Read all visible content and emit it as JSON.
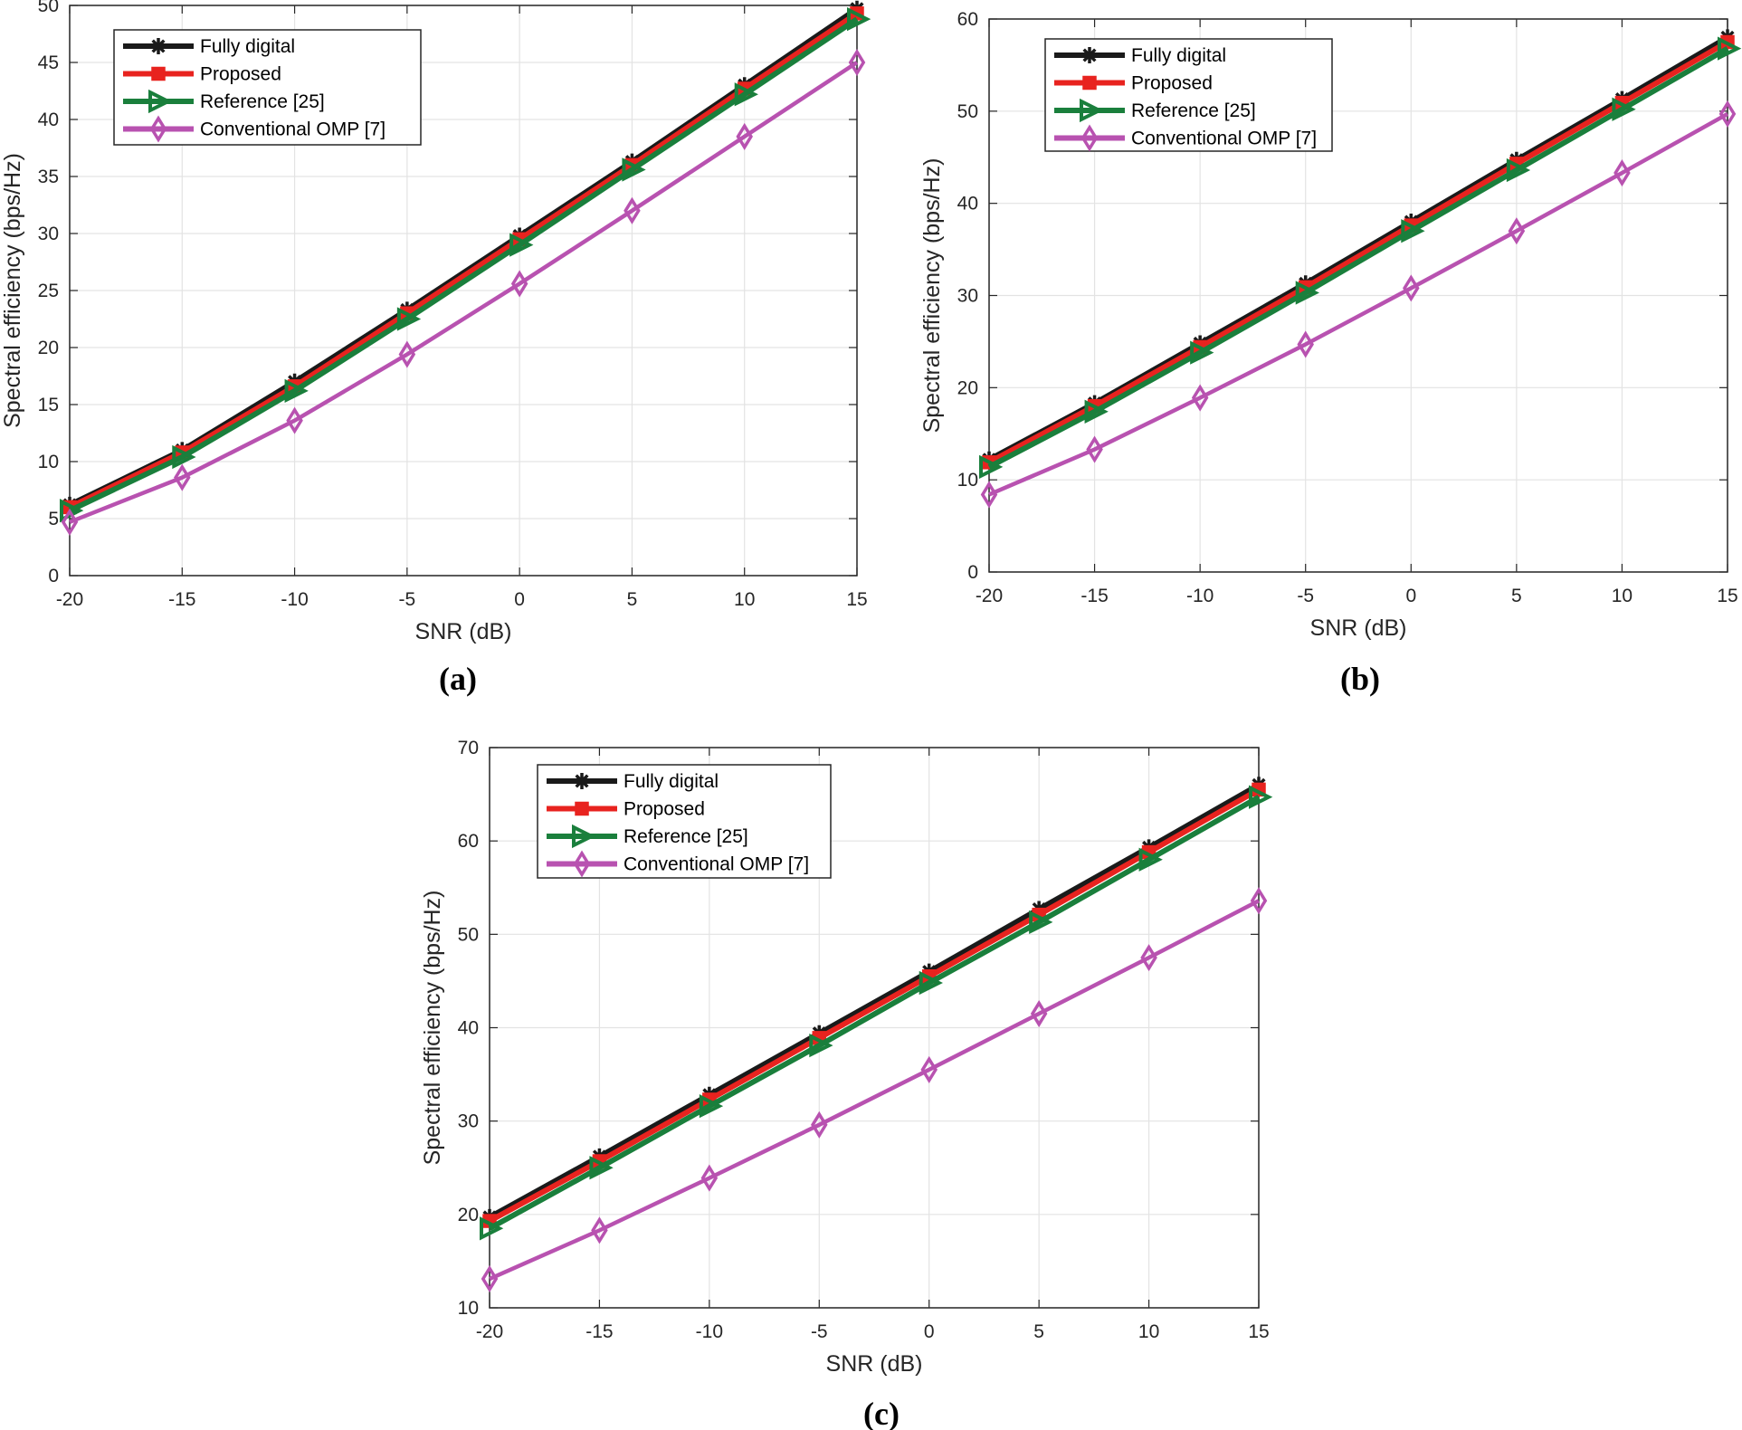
{
  "chart_data": [
    {
      "type": "line",
      "caption": "(a)",
      "xlabel": "SNR (dB)",
      "ylabel": "Spectral efficiency (bps/Hz)",
      "x": [
        -20,
        -15,
        -10,
        -5,
        0,
        5,
        10,
        15
      ],
      "xlim": [
        -20,
        15
      ],
      "ylim": [
        0,
        50
      ],
      "xticks": [
        "-20",
        "-15",
        "-10",
        "-5",
        "0",
        "5",
        "10",
        "15"
      ],
      "yticks": [
        "0",
        "5",
        "10",
        "15",
        "20",
        "25",
        "30",
        "35",
        "40",
        "45",
        "50"
      ],
      "grid": true,
      "legend_position": "top-left",
      "series": [
        {
          "name": "Fully digital",
          "color": "#1a1a1a",
          "marker": "asterisk",
          "values": [
            6.2,
            11.0,
            17.0,
            23.3,
            29.8,
            36.3,
            43.0,
            49.7
          ]
        },
        {
          "name": "Proposed",
          "color": "#e8231f",
          "marker": "square",
          "values": [
            6.0,
            10.8,
            16.6,
            23.0,
            29.5,
            36.0,
            42.7,
            49.3
          ]
        },
        {
          "name": "Reference [25]",
          "color": "#1a7f3c",
          "marker": "triangle-right",
          "values": [
            5.7,
            10.4,
            16.2,
            22.5,
            29.0,
            35.6,
            42.2,
            48.8
          ]
        },
        {
          "name": "Conventional OMP [7]",
          "color": "#b852b0",
          "marker": "diamond",
          "values": [
            4.7,
            8.6,
            13.6,
            19.4,
            25.6,
            32.0,
            38.5,
            45.0
          ]
        }
      ]
    },
    {
      "type": "line",
      "caption": "(b)",
      "xlabel": "SNR (dB)",
      "ylabel": "Spectral efficiency (bps/Hz)",
      "x": [
        -20,
        -15,
        -10,
        -5,
        0,
        5,
        10,
        15
      ],
      "xlim": [
        -20,
        15
      ],
      "ylim": [
        0,
        60
      ],
      "xticks": [
        "-20",
        "-15",
        "-10",
        "-5",
        "0",
        "5",
        "10",
        "15"
      ],
      "yticks": [
        "0",
        "10",
        "20",
        "30",
        "40",
        "50",
        "60"
      ],
      "grid": true,
      "legend_position": "top-left",
      "series": [
        {
          "name": "Fully digital",
          "color": "#1a1a1a",
          "marker": "asterisk",
          "values": [
            12.2,
            18.3,
            24.8,
            31.3,
            38.0,
            44.7,
            51.3,
            58.0
          ]
        },
        {
          "name": "Proposed",
          "color": "#e8231f",
          "marker": "square",
          "values": [
            11.9,
            18.0,
            24.4,
            30.9,
            37.6,
            44.3,
            50.9,
            57.5
          ]
        },
        {
          "name": "Reference [25]",
          "color": "#1a7f3c",
          "marker": "triangle-right",
          "values": [
            11.4,
            17.4,
            23.8,
            30.3,
            37.0,
            43.6,
            50.2,
            56.8
          ]
        },
        {
          "name": "Conventional OMP [7]",
          "color": "#b852b0",
          "marker": "diamond",
          "values": [
            8.4,
            13.3,
            18.9,
            24.7,
            30.8,
            37.0,
            43.3,
            49.7
          ]
        }
      ]
    },
    {
      "type": "line",
      "caption": "(c)",
      "xlabel": "SNR (dB)",
      "ylabel": "Spectral efficiency (bps/Hz)",
      "x": [
        -20,
        -15,
        -10,
        -5,
        0,
        5,
        10,
        15
      ],
      "xlim": [
        -20,
        15
      ],
      "ylim": [
        10,
        70
      ],
      "xticks": [
        "-20",
        "-15",
        "-10",
        "-5",
        "0",
        "5",
        "10",
        "15"
      ],
      "yticks": [
        "10",
        "20",
        "30",
        "40",
        "50",
        "60",
        "70"
      ],
      "grid": true,
      "legend_position": "top-left",
      "series": [
        {
          "name": "Fully digital",
          "color": "#1a1a1a",
          "marker": "asterisk",
          "values": [
            19.7,
            26.2,
            32.8,
            39.4,
            46.0,
            52.7,
            59.3,
            66.0
          ]
        },
        {
          "name": "Proposed",
          "color": "#e8231f",
          "marker": "square",
          "values": [
            19.3,
            25.7,
            32.3,
            38.9,
            45.5,
            52.1,
            58.8,
            65.5
          ]
        },
        {
          "name": "Reference [25]",
          "color": "#1a7f3c",
          "marker": "triangle-right",
          "values": [
            18.5,
            25.0,
            31.6,
            38.1,
            44.8,
            51.3,
            58.0,
            64.7
          ]
        },
        {
          "name": "Conventional OMP [7]",
          "color": "#b852b0",
          "marker": "diamond",
          "values": [
            13.1,
            18.3,
            23.9,
            29.6,
            35.5,
            41.5,
            47.5,
            53.6
          ]
        }
      ]
    }
  ]
}
